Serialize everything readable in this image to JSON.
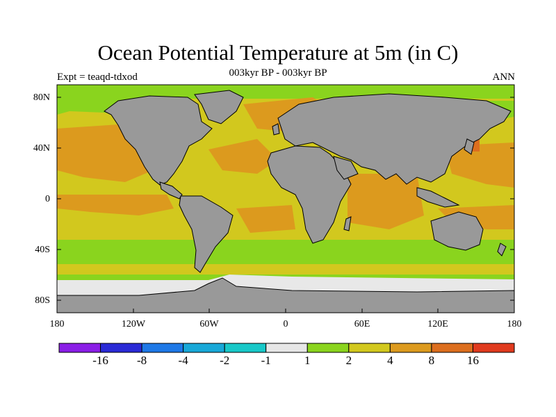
{
  "title": "Ocean Potential Temperature at 5m (in C)",
  "subtitle_left": "Expt = teaqd-tdxod",
  "subtitle_center": "003kyr BP - 003kyr BP",
  "subtitle_right": "ANN",
  "lat_labels": [
    "80N",
    "40N",
    "0",
    "40S",
    "80S"
  ],
  "lon_labels": [
    "180",
    "120W",
    "60W",
    "0",
    "60E",
    "120E",
    "180"
  ],
  "colorbar": {
    "colors": [
      "#8a1ee6",
      "#2a2ad6",
      "#1e78e6",
      "#18a8d8",
      "#18c8c8",
      "#e6e6e6",
      "#8ad41e",
      "#d2c81e",
      "#dc9a1e",
      "#dc6e1e",
      "#e03a1e"
    ],
    "labels": [
      "-16",
      "-8",
      "-4",
      "-2",
      "-1",
      "1",
      "2",
      "4",
      "8",
      "16"
    ]
  },
  "colors": {
    "land": "#999999",
    "ice": "#e8e8e8"
  }
}
